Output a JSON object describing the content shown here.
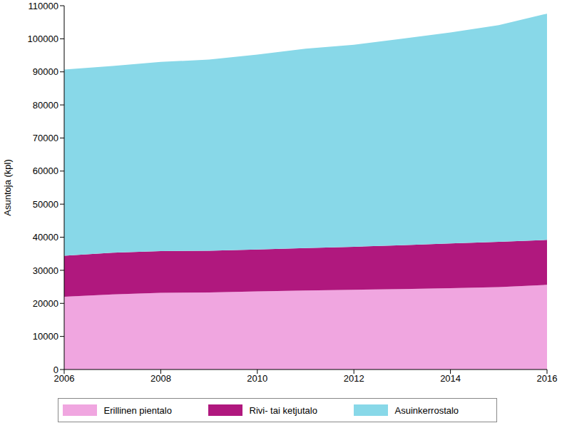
{
  "chart_data": {
    "type": "area",
    "stacked": true,
    "grid": false,
    "legend": "bottom",
    "y_label": "Asuntoja (kpl)",
    "x": [
      2006,
      2007,
      2008,
      2009,
      2010,
      2011,
      2012,
      2013,
      2014,
      2015,
      2016
    ],
    "xlim": [
      2006,
      2016
    ],
    "xticks": [
      2006,
      2008,
      2010,
      2012,
      2014,
      2016
    ],
    "ylim": [
      0,
      110000
    ],
    "yticks": [
      0,
      10000,
      20000,
      30000,
      40000,
      50000,
      60000,
      70000,
      80000,
      90000,
      100000,
      110000
    ],
    "series": [
      {
        "name": "Erillinen pientalo",
        "color": "#f0a6e0",
        "values": [
          22000,
          22700,
          23200,
          23300,
          23600,
          23900,
          24100,
          24300,
          24600,
          24900,
          25600
        ]
      },
      {
        "name": "Rivi- tai ketjutalo",
        "color": "#b0187e",
        "values": [
          12400,
          12600,
          12600,
          12600,
          12700,
          12800,
          13000,
          13300,
          13500,
          13700,
          13600
        ]
      },
      {
        "name": "Asuinkerrostalo",
        "color": "#88d8e8",
        "values": [
          56300,
          56500,
          57200,
          57800,
          58900,
          60300,
          61100,
          62400,
          63800,
          65500,
          68400
        ]
      }
    ]
  }
}
